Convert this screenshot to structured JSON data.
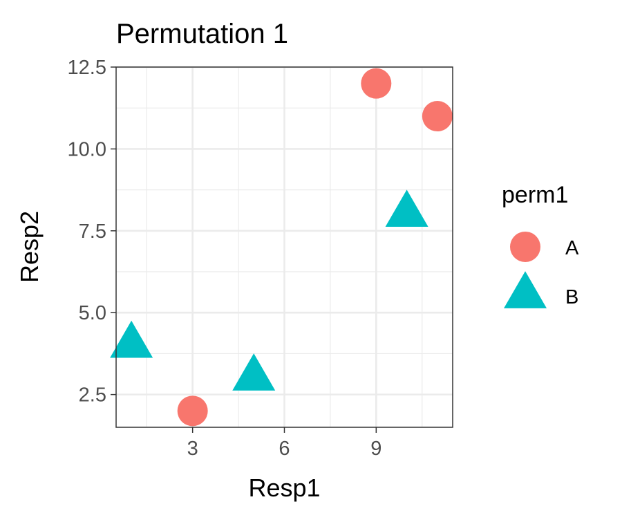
{
  "chart_data": {
    "type": "scatter",
    "title": "Permutation 1",
    "xlabel": "Resp1",
    "ylabel": "Resp2",
    "xlim": [
      0.5,
      11.5
    ],
    "ylim": [
      1.5,
      12.5
    ],
    "xticks": [
      3,
      6,
      9
    ],
    "xtick_labels": [
      "3",
      "6",
      "9"
    ],
    "yticks": [
      2.5,
      5.0,
      7.5,
      10.0,
      12.5
    ],
    "ytick_labels": [
      "2.5",
      "5.0",
      "7.5",
      "10.0",
      "12.5"
    ],
    "grid": true,
    "legend": {
      "title": "perm1",
      "placement": "right",
      "entries": [
        {
          "label": "A",
          "shape": "circle",
          "color": "#F8766D"
        },
        {
          "label": "B",
          "shape": "triangle",
          "color": "#00BFC4"
        }
      ]
    },
    "series": [
      {
        "name": "A",
        "shape": "circle",
        "color": "#F8766D",
        "points": [
          [
            3,
            2
          ],
          [
            9,
            12
          ],
          [
            11,
            11
          ]
        ]
      },
      {
        "name": "B",
        "shape": "triangle",
        "color": "#00BFC4",
        "points": [
          [
            1,
            4
          ],
          [
            5,
            3
          ],
          [
            10,
            8
          ]
        ]
      }
    ]
  }
}
